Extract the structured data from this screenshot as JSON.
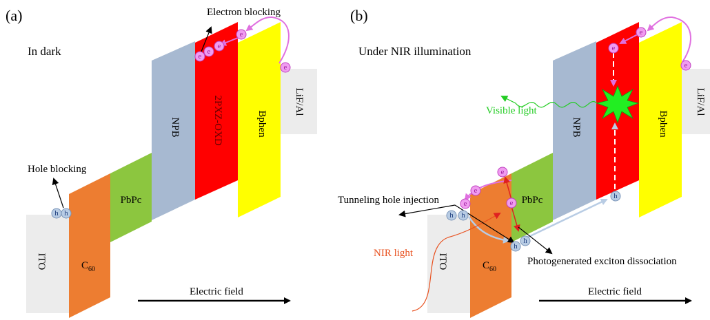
{
  "panel_a": {
    "tag": "(a)",
    "condition": "In dark",
    "electron_blocking": "Electron blocking",
    "hole_blocking": "Hole blocking",
    "field": "Electric field"
  },
  "panel_b": {
    "tag": "(b)",
    "condition": "Under NIR illumination",
    "visible_light": "Visible light",
    "tunneling": "Tunneling hole injection",
    "nir_light": "NIR light",
    "dissociation": "Photogenerated exciton dissociation",
    "field": "Electric field"
  },
  "layers": {
    "ito": "ITO",
    "c60": {
      "base": "C",
      "sub": "60"
    },
    "pbpc": "PbPc",
    "npb": "NPB",
    "oxd": "2PXZ-OXD",
    "bphen": "Bphen",
    "lif": "LiF/Al"
  },
  "carriers": {
    "electron": "e",
    "hole": "h"
  }
}
